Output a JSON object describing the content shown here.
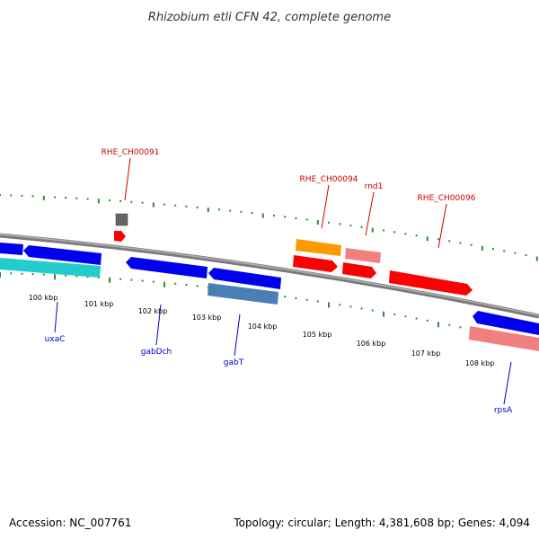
{
  "title": "Rhizobium etli CFN 42, complete genome",
  "footer": {
    "accession": "Accession: NC_007761",
    "summary": "Topology: circular; Length: 4,381,608 bp; Genes: 4,094"
  },
  "colors": {
    "backbone": "#808080",
    "tick": "#2e8b2e",
    "label_forward": "#cc0000",
    "label_reverse": "#0000cc",
    "cds_red": "#ff0000",
    "cds_blue": "#0000ee",
    "cds_cyan": "#22cccc",
    "cds_steel": "#4a7fb5",
    "cds_orange": "#ff9900",
    "cds_pink": "#f08080",
    "cds_gray": "#666666"
  },
  "scale_labels": [
    "100 kbp",
    "101 kbp",
    "102 kbp",
    "103 kbp",
    "104 kbp",
    "105 kbp",
    "106 kbp",
    "107 kbp",
    "108 kbp"
  ],
  "gene_labels_forward": [
    "RHE_CH00091",
    "RHE_CH00094",
    "rnd1",
    "RHE_CH00096"
  ],
  "gene_labels_reverse": [
    "uxaC",
    "gabDch",
    "gabT",
    "rpsA"
  ]
}
